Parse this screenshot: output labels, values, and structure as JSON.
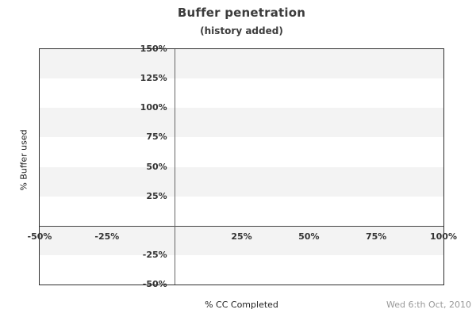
{
  "window": {
    "background": "#ffffff"
  },
  "header": {
    "title": "Buffer penetration",
    "subtitle": "(history added)"
  },
  "footer": {
    "date_label": "Wed 6:th Oct, 2010"
  },
  "chart_data": {
    "type": "scatter",
    "title": "Buffer penetration",
    "subtitle": "(history added)",
    "xlabel": "% CC Completed",
    "ylabel": "% Buffer used",
    "xlim": [
      -50,
      100
    ],
    "ylim": [
      -50,
      150
    ],
    "x_ticks": [
      {
        "v": -50,
        "label": "-50%"
      },
      {
        "v": -25,
        "label": "-25%"
      },
      {
        "v": 25,
        "label": "25%"
      },
      {
        "v": 50,
        "label": "50%"
      },
      {
        "v": 75,
        "label": "75%"
      },
      {
        "v": 100,
        "label": "100%"
      }
    ],
    "y_ticks": [
      {
        "v": 150,
        "label": "150%"
      },
      {
        "v": 125,
        "label": "125%"
      },
      {
        "v": 100,
        "label": "100%"
      },
      {
        "v": 75,
        "label": "75%"
      },
      {
        "v": 50,
        "label": "50%"
      },
      {
        "v": 25,
        "label": "25%"
      },
      {
        "v": -25,
        "label": "-25%"
      },
      {
        "v": -50,
        "label": "-50%"
      }
    ],
    "band_fills": {
      "color": "#f3f3f3",
      "ranges": [
        [
          125,
          150
        ],
        [
          75,
          100
        ],
        [
          25,
          50
        ],
        [
          -25,
          0
        ]
      ]
    },
    "axis_lines": {
      "x_zero_line": true,
      "y_zero_line": true,
      "h_color": "#444444",
      "v_color": "#666666"
    },
    "colors": {
      "plot_border": "#2f2f2f",
      "tick_label": "#333333",
      "title": "#3c3c3c",
      "axis_title": "#1f1f1f",
      "date": "#989898"
    },
    "legend": "none",
    "grid": "alternating horizontal bands every 25%",
    "series": []
  }
}
